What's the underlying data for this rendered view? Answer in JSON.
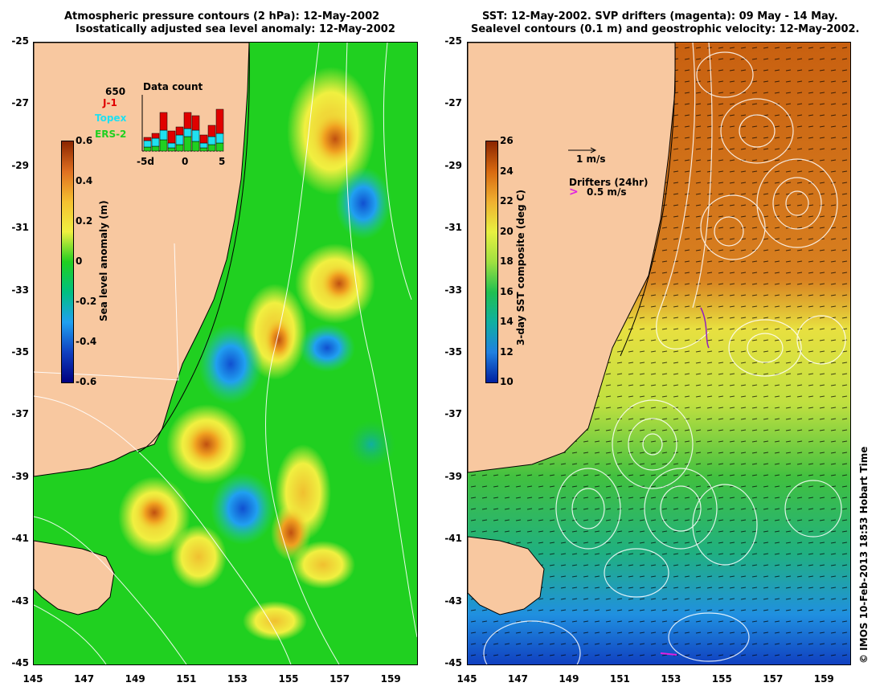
{
  "left_panel": {
    "title_line1": "Atmospheric pressure contours (2 hPa): 12-May-2002",
    "title_line2": "Isostatically adjusted sea level anomaly: 12-May-2002",
    "colorbar": {
      "title": "Sea level anomaly (m)",
      "ticks": [
        "0.6",
        "0.4",
        "0.2",
        "0",
        "-0.2",
        "-0.4",
        "-0.6"
      ],
      "colors": [
        "#8b2500",
        "#e07020",
        "#f5c030",
        "#f0f040",
        "#20d020",
        "#00c080",
        "#20a0f0",
        "#1040c0",
        "#000080"
      ]
    },
    "data_count": {
      "title": "Data count",
      "max_label": "650",
      "series": [
        {
          "name": "J-1",
          "color": "#e00000"
        },
        {
          "name": "Topex",
          "color": "#20e0f0"
        },
        {
          "name": "ERS-2",
          "color": "#20d020"
        }
      ],
      "x_ticks": [
        "-5d",
        "0",
        "5"
      ]
    }
  },
  "right_panel": {
    "title_line1": "SST: 12-May-2002. SVP drifters (magenta): 09 May - 14 May.",
    "title_line2": "Sealevel contours (0.1 m) and geostrophic velocity: 12-May-2002.",
    "colorbar": {
      "title": "3-day SST composite (deg C)",
      "ticks": [
        "26",
        "24",
        "22",
        "20",
        "18",
        "16",
        "14",
        "12",
        "10"
      ],
      "colors": [
        "#8b2500",
        "#d86a10",
        "#f0b030",
        "#e8f040",
        "#a0e040",
        "#20c050",
        "#10b0a0",
        "#2080e0",
        "#0020a0"
      ]
    },
    "vector_scale_label": "1 m/s",
    "drifters_label": "Drifters (24hr)",
    "drifters_speed_label": "0.5 m/s"
  },
  "axes": {
    "y_ticks": [
      "-25",
      "-27",
      "-29",
      "-31",
      "-33",
      "-35",
      "-37",
      "-39",
      "-41",
      "-43",
      "-45"
    ],
    "x_ticks": [
      "145",
      "147",
      "149",
      "151",
      "153",
      "155",
      "157",
      "159"
    ]
  },
  "copyright": "© IMOS 10-Feb-2013 18:53 Hobart Time"
}
